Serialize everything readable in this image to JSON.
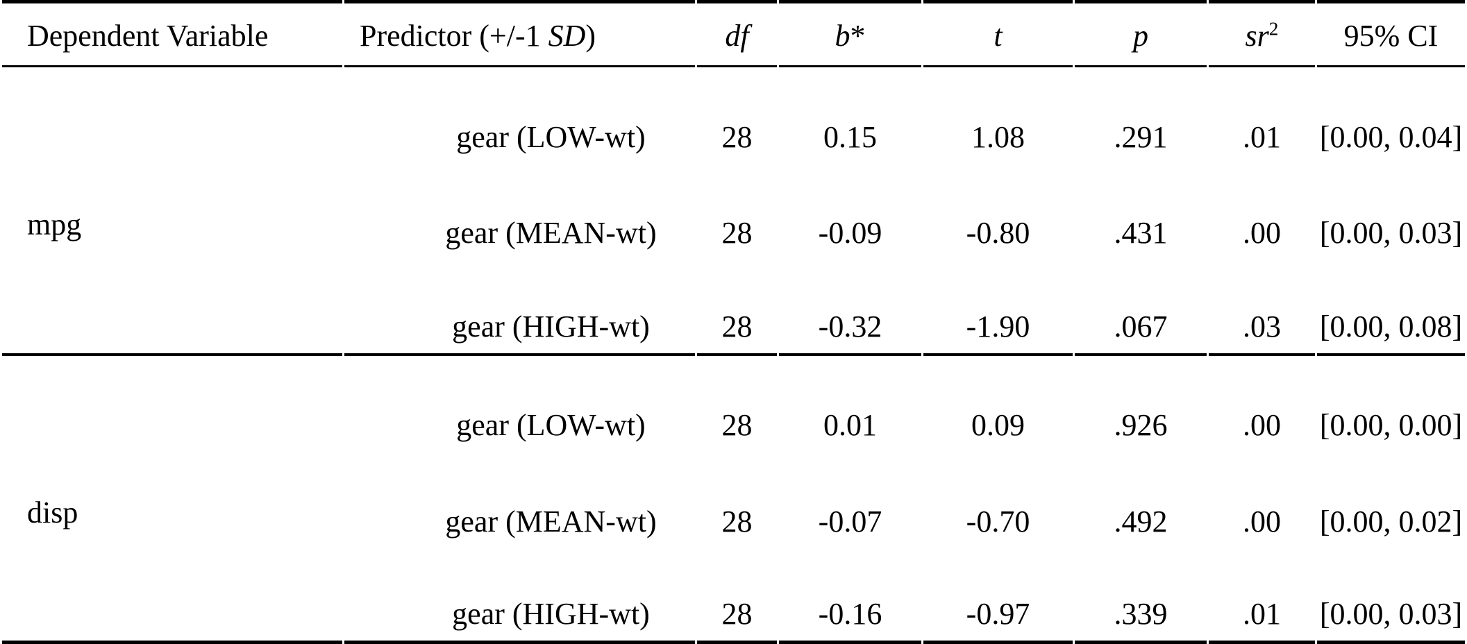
{
  "table": {
    "columns": [
      {
        "key": "dv",
        "label": "Dependent Variable",
        "italic": false
      },
      {
        "key": "predictor",
        "pre": "Predictor (+/-1 ",
        "label": "SD",
        "italic": true,
        "post": ")"
      },
      {
        "key": "df",
        "label": "df",
        "italic": true
      },
      {
        "key": "b",
        "label": "b",
        "italic": true,
        "post": "*"
      },
      {
        "key": "t",
        "label": "t",
        "italic": true
      },
      {
        "key": "p",
        "label": "p",
        "italic": true
      },
      {
        "key": "sr2",
        "label": "sr",
        "italic": true,
        "sup": "2"
      },
      {
        "key": "ci",
        "label": "95% CI",
        "italic": false
      }
    ],
    "groups": [
      {
        "dv": "mpg",
        "rows": [
          {
            "predictor": "gear (LOW-wt)",
            "df": "28",
            "b": "0.15",
            "t": "1.08",
            "p": ".291",
            "sr2": ".01",
            "ci": "[0.00, 0.04]"
          },
          {
            "predictor": "gear (MEAN-wt)",
            "df": "28",
            "b": "-0.09",
            "t": "-0.80",
            "p": ".431",
            "sr2": ".00",
            "ci": "[0.00, 0.03]"
          },
          {
            "predictor": "gear (HIGH-wt)",
            "df": "28",
            "b": "-0.32",
            "t": "-1.90",
            "p": ".067",
            "sr2": ".03",
            "ci": "[0.00, 0.08]"
          }
        ]
      },
      {
        "dv": "disp",
        "rows": [
          {
            "predictor": "gear (LOW-wt)",
            "df": "28",
            "b": "0.01",
            "t": "0.09",
            "p": ".926",
            "sr2": ".00",
            "ci": "[0.00, 0.00]"
          },
          {
            "predictor": "gear (MEAN-wt)",
            "df": "28",
            "b": "-0.07",
            "t": "-0.70",
            "p": ".492",
            "sr2": ".00",
            "ci": "[0.00, 0.02]"
          },
          {
            "predictor": "gear (HIGH-wt)",
            "df": "28",
            "b": "-0.16",
            "t": "-0.97",
            "p": ".339",
            "sr2": ".01",
            "ci": "[0.00, 0.03]"
          }
        ]
      }
    ]
  },
  "colors": {
    "text": "#000000",
    "rule": "#000000",
    "background": "#ffffff"
  }
}
